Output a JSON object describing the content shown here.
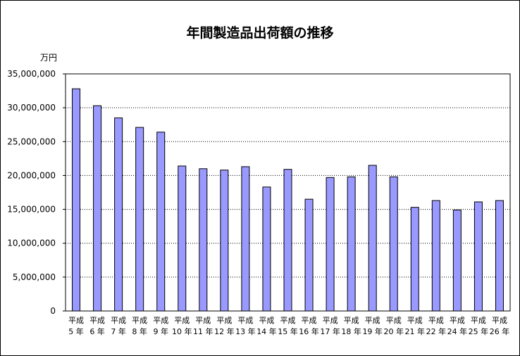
{
  "chart_data": {
    "type": "bar",
    "title": "年間製造品出荷額の推移",
    "ylabel": "万円",
    "xlabel": "",
    "ylim": [
      0,
      35000000
    ],
    "y_tick_labels": [
      "0",
      "5,000,000",
      "10,000,000",
      "15,000,000",
      "20,000,000",
      "25,000,000",
      "30,000,000",
      "35,000,000"
    ],
    "y_ticks": [
      0,
      5000000,
      10000000,
      15000000,
      20000000,
      25000000,
      30000000,
      35000000
    ],
    "categories": [
      {
        "line1": "平成",
        "line2": "5 年"
      },
      {
        "line1": "平成",
        "line2": "6 年"
      },
      {
        "line1": "平成",
        "line2": "7 年"
      },
      {
        "line1": "平成",
        "line2": "8 年"
      },
      {
        "line1": "平成",
        "line2": "9 年"
      },
      {
        "line1": "平成",
        "line2": "10 年"
      },
      {
        "line1": "平成",
        "line2": "11 年"
      },
      {
        "line1": "平成",
        "line2": "12 年"
      },
      {
        "line1": "平成",
        "line2": "13 年"
      },
      {
        "line1": "平成",
        "line2": "14 年"
      },
      {
        "line1": "平成",
        "line2": "15 年"
      },
      {
        "line1": "平成",
        "line2": "16 年"
      },
      {
        "line1": "平成",
        "line2": "17 年"
      },
      {
        "line1": "平成",
        "line2": "18 年"
      },
      {
        "line1": "平成",
        "line2": "19 年"
      },
      {
        "line1": "平成",
        "line2": "20 年"
      },
      {
        "line1": "平成",
        "line2": "21 年"
      },
      {
        "line1": "平成",
        "line2": "22 年"
      },
      {
        "line1": "平成",
        "line2": "24 年"
      },
      {
        "line1": "平成",
        "line2": "25 年"
      },
      {
        "line1": "平成",
        "line2": "26 年"
      }
    ],
    "values": [
      32800000,
      30300000,
      28500000,
      27100000,
      26400000,
      21400000,
      21000000,
      20800000,
      21300000,
      18300000,
      20900000,
      16500000,
      19700000,
      19800000,
      21500000,
      19800000,
      15300000,
      16300000,
      14900000,
      16100000,
      16300000
    ],
    "grid": true,
    "legend": "none",
    "bar_color": "#9999ff"
  }
}
